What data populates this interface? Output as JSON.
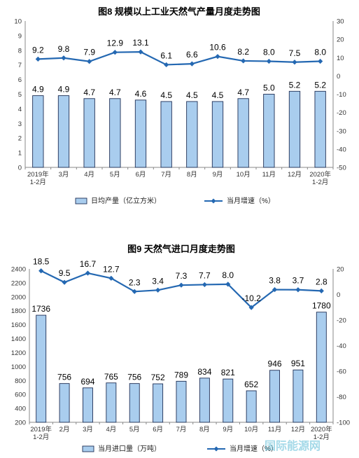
{
  "chart_data": [
    {
      "type": "bar",
      "title": "图8  规模以上工业天然气产量月度走势图",
      "categories": [
        "2019年\n1-2月",
        "3月",
        "4月",
        "5月",
        "6月",
        "7月",
        "8月",
        "9月",
        "10月",
        "11月",
        "12月",
        "2020年\n1-2月"
      ],
      "series": [
        {
          "name": "日均产量（亿立方米）",
          "type": "bar",
          "axis": "left",
          "values": [
            4.9,
            4.9,
            4.7,
            4.7,
            4.6,
            4.5,
            4.5,
            4.5,
            4.7,
            5.0,
            5.2,
            5.2
          ],
          "labels": [
            "4.9",
            "4.9",
            "4.7",
            "4.7",
            "4.6",
            "4.5",
            "4.5",
            "4.5",
            "4.7",
            "5.0",
            "5.2",
            "5.2"
          ]
        },
        {
          "name": "当月增速（%）",
          "type": "line",
          "axis": "right",
          "values": [
            9.2,
            9.8,
            7.9,
            12.9,
            13.1,
            6.1,
            6.6,
            10.6,
            8.2,
            8.0,
            7.5,
            8.0
          ],
          "labels": [
            "9.2",
            "9.8",
            "7.9",
            "12.9",
            "13.1",
            "6.1",
            "6.6",
            "10.6",
            "8.2",
            "8.0",
            "7.5",
            "8.0"
          ]
        }
      ],
      "ylim_left": [
        0,
        10
      ],
      "yticks_left": [
        "0",
        "1",
        "2",
        "3",
        "4",
        "5",
        "6",
        "7",
        "8",
        "9",
        "10"
      ],
      "ylim_right": [
        -50,
        30
      ],
      "yticks_right": [
        "-50",
        "-40",
        "-30",
        "-20",
        "-10",
        "0",
        "10",
        "20",
        "30"
      ],
      "legend_position": "bottom",
      "colors": {
        "bar_fill": "#a9cdee",
        "bar_edge": "#1f2f55",
        "line": "#2468b2"
      }
    },
    {
      "type": "bar",
      "title": "图9  天然气进口月度走势图",
      "categories": [
        "2019年\n1-2月",
        "2月",
        "3月",
        "4月",
        "5月",
        "6月",
        "7月",
        "8月",
        "9月",
        "10月",
        "11月",
        "12月",
        "2020年\n1-2月"
      ],
      "series": [
        {
          "name": "当月进口量（万吨）",
          "type": "bar",
          "axis": "left",
          "values": [
            1736,
            756,
            694,
            765,
            756,
            752,
            789,
            834,
            821,
            652,
            946,
            951,
            1780
          ],
          "labels": [
            "1736",
            "756",
            "694",
            "765",
            "756",
            "752",
            "789",
            "834",
            "821",
            "652",
            "946",
            "951",
            "1780"
          ]
        },
        {
          "name": "当月增速（%）",
          "type": "line",
          "axis": "right",
          "values": [
            18.5,
            9.5,
            16.7,
            12.7,
            2.3,
            3.4,
            7.3,
            7.7,
            8.0,
            -10.2,
            3.8,
            3.7,
            2.8
          ],
          "labels": [
            "18.5",
            "9.5",
            "16.7",
            "12.7",
            "2.3",
            "3.4",
            "7.3",
            "7.7",
            "8.0",
            "-10.2",
            "3.8",
            "3.7",
            "2.8"
          ]
        }
      ],
      "ylim_left": [
        200,
        2400
      ],
      "yticks_left": [
        "200",
        "400",
        "600",
        "800",
        "1000",
        "1200",
        "1400",
        "1600",
        "1800",
        "2000",
        "2200",
        "2400"
      ],
      "ylim_right": [
        -100,
        20
      ],
      "yticks_right": [
        "-100",
        "-80",
        "-60",
        "-40",
        "-20",
        "0",
        "20"
      ],
      "legend_position": "bottom",
      "colors": {
        "bar_fill": "#a9cdee",
        "bar_edge": "#1f2f55",
        "line": "#2468b2"
      }
    }
  ],
  "watermark": {
    "text": "国际能源网"
  }
}
